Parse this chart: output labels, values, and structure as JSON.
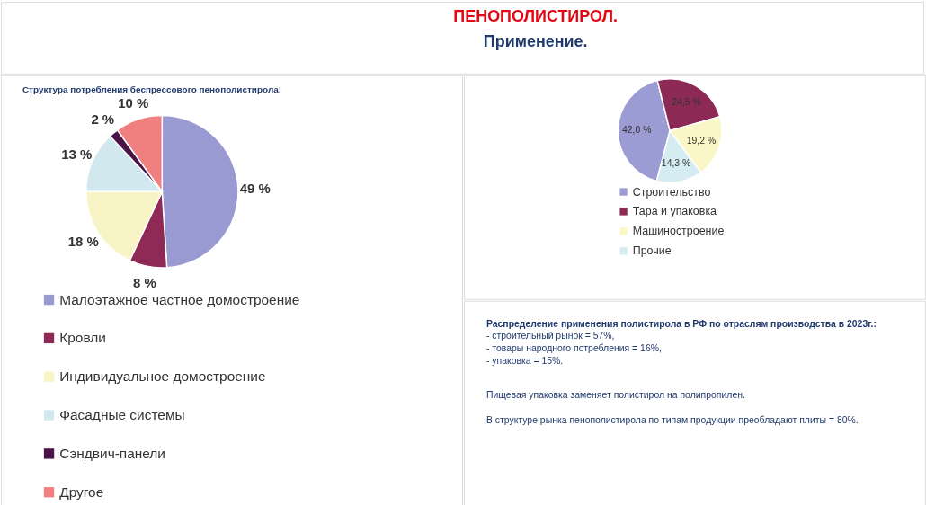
{
  "chart_data": [
    {
      "type": "other",
      "title": "ПЕНОПОЛИСТИРОЛ.",
      "subtitle": "Применение."
    },
    {
      "type": "pie",
      "title": "Структура потребления беспрессового пенополистирола:",
      "categories": [
        "Малоэтажное частное домостроение",
        "Кровли",
        "Индивидуальное домостроение",
        "Фасадные системы",
        "Сэндвич-панели",
        "Другое"
      ],
      "values": [
        49,
        8,
        18,
        13,
        2,
        10
      ],
      "colors": [
        "#9a9ad2",
        "#8e2a55",
        "#f8f4c6",
        "#d2e8ef",
        "#4a1448",
        "#f08080"
      ],
      "value_labels": [
        "49 %",
        "8 %",
        "18 %",
        "13 %",
        "2 %",
        "10 %"
      ],
      "legend": "bottom"
    },
    {
      "type": "pie",
      "categories": [
        "Строительство",
        "Тара и упаковка",
        "Машиностроение",
        "Прочие"
      ],
      "values": [
        42.0,
        24.5,
        19.2,
        14.3
      ],
      "colors": [
        "#9c9cd4",
        "#8c2a55",
        "#fbf6c6",
        "#d5ecf2"
      ],
      "value_labels": [
        "42,0 %",
        "24,5 %",
        "19,2 %",
        "14,3 %"
      ],
      "legend": "bottom"
    },
    {
      "type": "other",
      "title": "Распределение применения полистирола в РФ по отраслям производства в 2023г.:",
      "annotations": [
        "- строительный рынок = 57%,",
        "- товары народного потребления = 16%,",
        "- упаковка = 15%.",
        "Пищевая упаковка заменяет полистирол на полипропилен.",
        "В структуре рынка пенополистирола по типам продукции преобладают плиты = 80%."
      ]
    }
  ]
}
